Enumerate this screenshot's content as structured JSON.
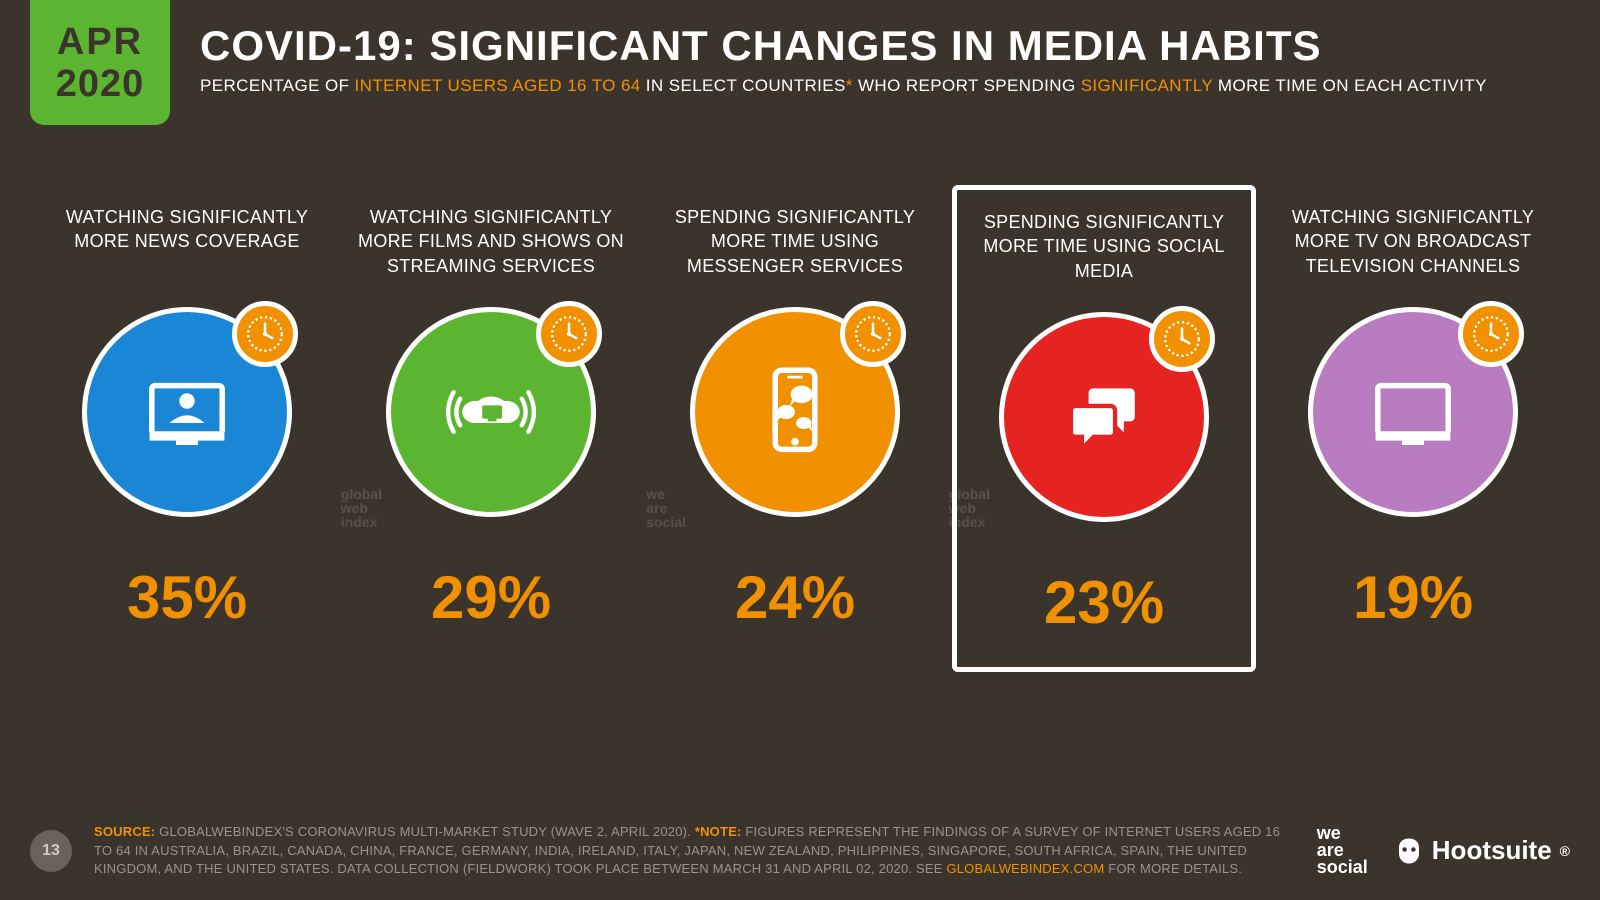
{
  "date_badge": {
    "month": "APR",
    "year": "2020"
  },
  "header": {
    "title": "COVID-19: SIGNIFICANT CHANGES IN MEDIA HABITS",
    "subtitle_pre": "PERCENTAGE OF ",
    "subtitle_hl1": "INTERNET USERS AGED 16 TO 64",
    "subtitle_mid1": " IN SELECT COUNTRIES",
    "subtitle_hl2": "*",
    "subtitle_mid2": " WHO REPORT SPENDING ",
    "subtitle_hl3": "SIGNIFICANTLY",
    "subtitle_post": " MORE TIME ON EACH ACTIVITY"
  },
  "colors": {
    "background": "#3b342c",
    "accent_green": "#5cb531",
    "accent_orange": "#f29100",
    "circle_border": "#ffffff",
    "text": "#ffffff",
    "footer_text": "#9b9389"
  },
  "stats": [
    {
      "label": "WATCHING SIGNIFICANTLY MORE NEWS COVERAGE",
      "value": "35%",
      "circle_color": "#1a86d6",
      "icon": "news",
      "highlighted": false,
      "watermark": "global\nweb\nindex"
    },
    {
      "label": "WATCHING SIGNIFICANTLY MORE FILMS AND SHOWS ON STREAMING SERVICES",
      "value": "29%",
      "circle_color": "#5cb531",
      "icon": "streaming",
      "highlighted": false,
      "watermark": "we\nare\nsocial"
    },
    {
      "label": "SPENDING SIGNIFICANTLY MORE TIME USING MESSENGER SERVICES",
      "value": "24%",
      "circle_color": "#f29100",
      "icon": "messenger",
      "highlighted": false,
      "watermark": "global\nweb\nindex"
    },
    {
      "label": "SPENDING SIGNIFICANTLY MORE TIME USING SOCIAL MEDIA",
      "value": "23%",
      "circle_color": "#e52421",
      "icon": "social",
      "highlighted": true,
      "watermark": ""
    },
    {
      "label": "WATCHING SIGNIFICANTLY MORE TV ON BROADCAST TELEVISION CHANNELS",
      "value": "19%",
      "circle_color": "#ba7cc1",
      "icon": "tv",
      "highlighted": false,
      "watermark": ""
    }
  ],
  "clock_badge_color": "#f29100",
  "footer": {
    "page_number": "13",
    "source_label": "SOURCE:",
    "source_text": " GLOBALWEBINDEX'S CORONAVIRUS MULTI-MARKET STUDY (WAVE 2, APRIL 2020). ",
    "note_label": "*NOTE:",
    "note_text": " FIGURES REPRESENT THE FINDINGS OF A SURVEY OF INTERNET USERS AGED 16 TO 64 IN AUSTRALIA, BRAZIL, CANADA, CHINA, FRANCE, GERMANY, INDIA, IRELAND, ITALY, JAPAN, NEW ZEALAND, PHILIPPINES, SINGAPORE, SOUTH AFRICA, SPAIN, THE UNITED KINGDOM, AND THE UNITED STATES. DATA COLLECTION (FIELDWORK) TOOK PLACE BETWEEN MARCH 31 AND APRIL 02, 2020. SEE ",
    "link_text": "GLOBALWEBINDEX.COM",
    "note_tail": " FOR MORE DETAILS."
  },
  "logos": {
    "was_line1": "we",
    "was_line2": "are",
    "was_line3": "social",
    "hootsuite": "Hootsuite"
  }
}
